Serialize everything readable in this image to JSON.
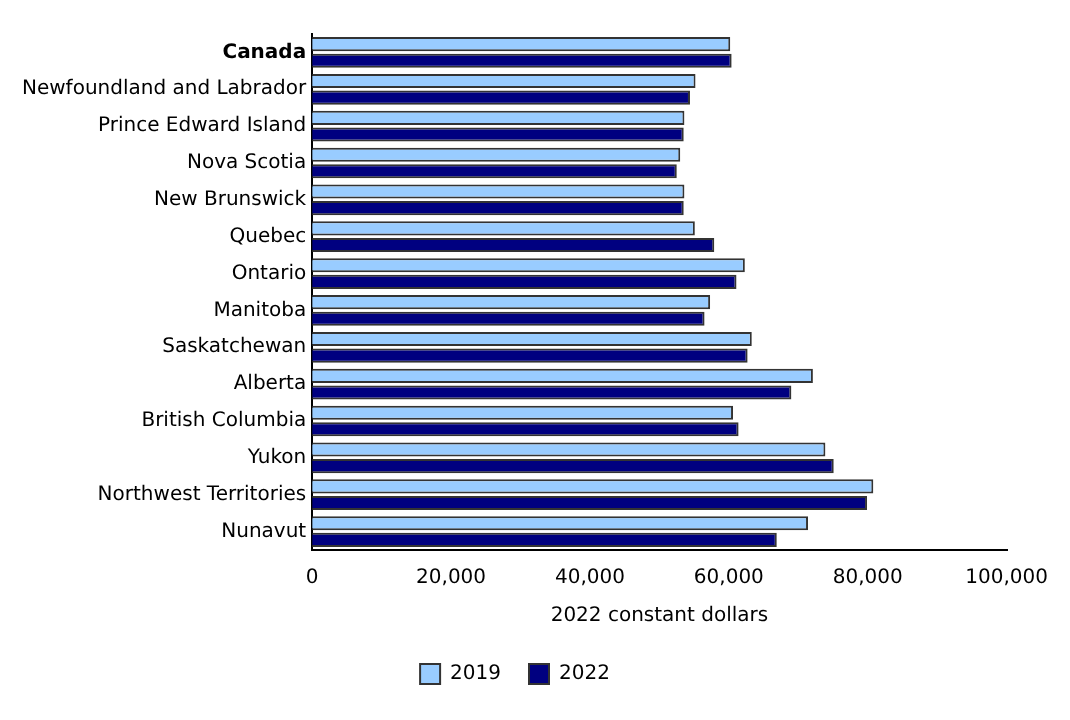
{
  "chart_data": {
    "type": "bar",
    "orientation": "horizontal",
    "xlabel": "2022 constant dollars",
    "categories": [
      "Canada",
      "Newfoundland and Labrador",
      "Prince Edward Island",
      "Nova Scotia",
      "New Brunswick",
      "Quebec",
      "Ontario",
      "Manitoba",
      "Saskatchewan",
      "Alberta",
      "British Columbia",
      "Yukon",
      "Northwest Territories",
      "Nunavut"
    ],
    "series": [
      {
        "name": "2019",
        "color": "#99ccff",
        "values": [
          60200,
          55200,
          53600,
          53000,
          53600,
          55100,
          62300,
          57300,
          63300,
          72100,
          60600,
          73900,
          80800,
          71400
        ]
      },
      {
        "name": "2022",
        "color": "#000080",
        "values": [
          60400,
          54400,
          53500,
          52500,
          53500,
          57900,
          61100,
          56500,
          62700,
          69000,
          61400,
          75100,
          79900,
          66900
        ]
      }
    ],
    "xlim": [
      0,
      100000
    ],
    "xticks": [
      {
        "value": 0,
        "label": "0"
      },
      {
        "value": 20000,
        "label": "20,000"
      },
      {
        "value": 40000,
        "label": "40,000"
      },
      {
        "value": 60000,
        "label": "60,000"
      },
      {
        "value": 80000,
        "label": "80,000"
      },
      {
        "value": 100000,
        "label": "100,000"
      }
    ],
    "grid": false,
    "legend": "bottom"
  }
}
